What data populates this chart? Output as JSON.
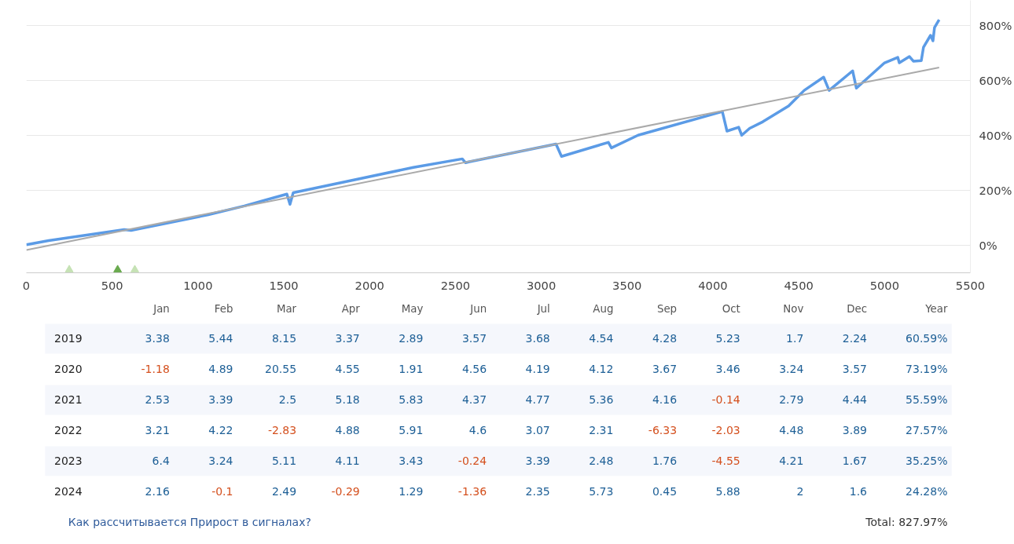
{
  "chart_data": [
    {
      "type": "line",
      "xlim": [
        0,
        5500
      ],
      "ylim": [
        -100,
        890
      ],
      "xticks": [
        0,
        500,
        1000,
        1500,
        2000,
        2500,
        3000,
        3500,
        4000,
        4500,
        5000,
        5500
      ],
      "yticks": [
        {
          "value": 0,
          "label": "0%"
        },
        {
          "value": 200,
          "label": "200%"
        },
        {
          "value": 400,
          "label": "400%"
        },
        {
          "value": 600,
          "label": "600%"
        },
        {
          "value": 800,
          "label": "800%"
        }
      ],
      "grid": "y",
      "series": [
        {
          "type": "line",
          "color": "#5b9be6",
          "x": [
            0,
            130,
            570,
            610,
            1060,
            1270,
            1518,
            1536,
            1555,
            1859,
            2255,
            2540,
            2559,
            2577,
            3086,
            3118,
            3391,
            3409,
            3564,
            4055,
            4082,
            4150,
            4168,
            4214,
            4291,
            4441,
            4532,
            4645,
            4677,
            4814,
            4836,
            5000,
            5077,
            5086,
            5145,
            5168,
            5214,
            5227,
            5268,
            5282,
            5291,
            5318
          ],
          "values": [
            2,
            17,
            57,
            54,
            111,
            143,
            186,
            149,
            191,
            231,
            283,
            314,
            300,
            303,
            368,
            323,
            374,
            354,
            400,
            486,
            415,
            429,
            400,
            425,
            449,
            506,
            563,
            611,
            563,
            634,
            571,
            663,
            683,
            663,
            686,
            669,
            671,
            720,
            763,
            743,
            791,
            820
          ]
        },
        {
          "type": "line",
          "color": "#aaaaaa",
          "x": [
            0,
            5318
          ],
          "values": [
            -17,
            646
          ]
        },
        {
          "type": "scatter",
          "marker": "triangle",
          "colors": [
            "#c6e2b5",
            "#6aaa4f",
            "#c6e2b5"
          ],
          "x": [
            250,
            532,
            632
          ],
          "values": [
            -89,
            -89,
            -89
          ]
        }
      ]
    },
    {
      "type": "heatmap",
      "categories": [
        "Jan",
        "Feb",
        "Mar",
        "Apr",
        "May",
        "Jun",
        "Jul",
        "Aug",
        "Sep",
        "Oct",
        "Nov",
        "Dec",
        "Year"
      ],
      "y_categories": [
        "2019",
        "2020",
        "2021",
        "2022",
        "2023",
        "2024"
      ],
      "cells": [
        [
          3.38,
          5.44,
          8.15,
          3.37,
          2.89,
          3.57,
          3.68,
          4.54,
          4.28,
          5.23,
          1.7,
          2.24,
          60.59
        ],
        [
          -1.18,
          4.89,
          20.55,
          4.55,
          1.91,
          4.56,
          4.19,
          4.12,
          3.67,
          3.46,
          3.24,
          3.57,
          73.19
        ],
        [
          2.53,
          3.39,
          2.5,
          5.18,
          5.83,
          4.37,
          4.77,
          5.36,
          4.16,
          -0.14,
          2.79,
          4.44,
          55.59
        ],
        [
          3.21,
          4.22,
          -2.83,
          4.88,
          5.91,
          4.6,
          3.07,
          2.31,
          -6.33,
          -2.03,
          4.48,
          3.89,
          27.57
        ],
        [
          6.4,
          3.24,
          5.11,
          4.11,
          3.43,
          -0.24,
          3.39,
          2.48,
          1.76,
          -4.55,
          4.21,
          1.67,
          35.25
        ],
        [
          2.16,
          -0.1,
          2.49,
          -0.29,
          1.29,
          -1.36,
          2.35,
          5.73,
          0.45,
          5.88,
          2,
          1.6,
          24.28
        ]
      ],
      "cell_labels": [
        [
          "3.38",
          "5.44",
          "8.15",
          "3.37",
          "2.89",
          "3.57",
          "3.68",
          "4.54",
          "4.28",
          "5.23",
          "1.7",
          "2.24",
          "60.59%"
        ],
        [
          "-1.18",
          "4.89",
          "20.55",
          "4.55",
          "1.91",
          "4.56",
          "4.19",
          "4.12",
          "3.67",
          "3.46",
          "3.24",
          "3.57",
          "73.19%"
        ],
        [
          "2.53",
          "3.39",
          "2.5",
          "5.18",
          "5.83",
          "4.37",
          "4.77",
          "5.36",
          "4.16",
          "-0.14",
          "2.79",
          "4.44",
          "55.59%"
        ],
        [
          "3.21",
          "4.22",
          "-2.83",
          "4.88",
          "5.91",
          "4.6",
          "3.07",
          "2.31",
          "-6.33",
          "-2.03",
          "4.48",
          "3.89",
          "27.57%"
        ],
        [
          "6.4",
          "3.24",
          "5.11",
          "4.11",
          "3.43",
          "-0.24",
          "3.39",
          "2.48",
          "1.76",
          "-4.55",
          "4.21",
          "1.67",
          "35.25%"
        ],
        [
          "2.16",
          "-0.1",
          "2.49",
          "-0.29",
          "1.29",
          "-1.36",
          "2.35",
          "5.73",
          "0.45",
          "5.88",
          "2",
          "1.6",
          "24.28%"
        ]
      ],
      "annotations": [
        "Как рассчитывается Прирост в сигналах?",
        "Total: 827.97%"
      ]
    }
  ]
}
